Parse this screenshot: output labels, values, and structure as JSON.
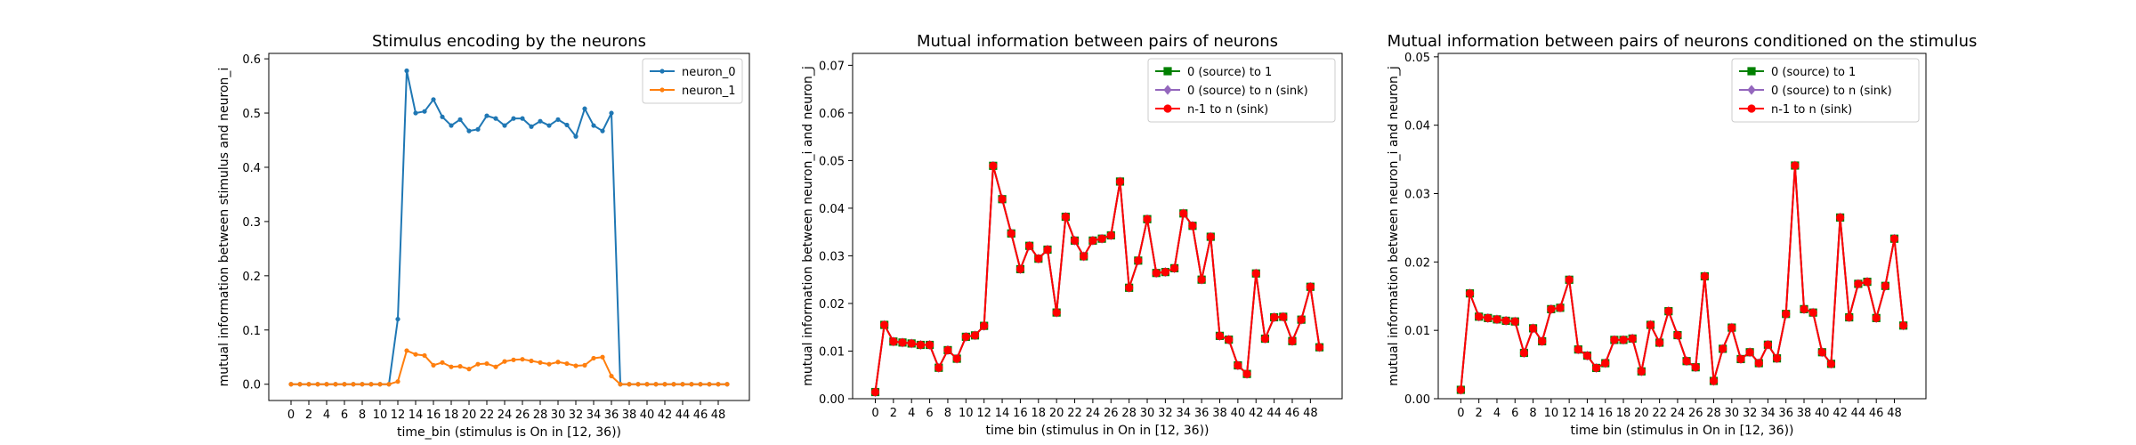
{
  "chart_data": [
    {
      "type": "line",
      "title": "Stimulus encoding by the neurons",
      "xlabel": "time_bin (stimulus is On in [12, 36))",
      "ylabel": "mutual information between stimulus and neuron_i",
      "xlim": [
        -2.5,
        51.5
      ],
      "ylim": [
        -0.03,
        0.61
      ],
      "xticks": [
        0,
        2,
        4,
        6,
        8,
        10,
        12,
        14,
        16,
        18,
        20,
        22,
        24,
        26,
        28,
        30,
        32,
        34,
        36,
        38,
        40,
        42,
        44,
        46,
        48
      ],
      "yticks": [
        0.0,
        0.1,
        0.2,
        0.3,
        0.4,
        0.5,
        0.6
      ],
      "ytick_labels": [
        "0.0",
        "0.1",
        "0.2",
        "0.3",
        "0.4",
        "0.5",
        "0.6"
      ],
      "legend_position": "top-right",
      "x": [
        0,
        1,
        2,
        3,
        4,
        5,
        6,
        7,
        8,
        9,
        10,
        11,
        12,
        13,
        14,
        15,
        16,
        17,
        18,
        19,
        20,
        21,
        22,
        23,
        24,
        25,
        26,
        27,
        28,
        29,
        30,
        31,
        32,
        33,
        34,
        35,
        36,
        37,
        38,
        39,
        40,
        41,
        42,
        43,
        44,
        45,
        46,
        47,
        48,
        49
      ],
      "series": [
        {
          "name": "neuron_0",
          "color": "#1f77b4",
          "marker": "dot",
          "values": [
            0,
            0,
            0,
            0,
            0,
            0,
            0,
            0,
            0,
            0,
            0,
            0,
            0.12,
            0.578,
            0.5,
            0.503,
            0.525,
            0.493,
            0.477,
            0.488,
            0.467,
            0.47,
            0.495,
            0.49,
            0.477,
            0.49,
            0.49,
            0.475,
            0.485,
            0.477,
            0.488,
            0.478,
            0.457,
            0.508,
            0.477,
            0.467,
            0.5,
            0,
            0,
            0,
            0,
            0,
            0,
            0,
            0,
            0,
            0,
            0,
            0,
            0
          ]
        },
        {
          "name": "neuron_1",
          "color": "#ff7f0e",
          "marker": "dot",
          "values": [
            0,
            0,
            0,
            0,
            0,
            0,
            0,
            0,
            0,
            0,
            0,
            0,
            0.005,
            0.062,
            0.055,
            0.053,
            0.035,
            0.04,
            0.032,
            0.033,
            0.028,
            0.037,
            0.038,
            0.032,
            0.042,
            0.045,
            0.046,
            0.043,
            0.04,
            0.037,
            0.041,
            0.038,
            0.034,
            0.035,
            0.048,
            0.05,
            0.015,
            0,
            0,
            0,
            0,
            0,
            0,
            0,
            0,
            0,
            0,
            0,
            0,
            0
          ]
        }
      ]
    },
    {
      "type": "line",
      "title": "Mutual information between pairs of neurons",
      "xlabel": "time bin (stimulus in On in [12, 36))",
      "ylabel": "mutual information between neuron_i and neuron_j",
      "xlim": [
        -2.5,
        51.5
      ],
      "ylim": [
        0,
        0.0725
      ],
      "xticks": [
        0,
        2,
        4,
        6,
        8,
        10,
        12,
        14,
        16,
        18,
        20,
        22,
        24,
        26,
        28,
        30,
        32,
        34,
        36,
        38,
        40,
        42,
        44,
        46,
        48
      ],
      "yticks": [
        0.0,
        0.01,
        0.02,
        0.03,
        0.04,
        0.05,
        0.06,
        0.07
      ],
      "ytick_labels": [
        "0.00",
        "0.01",
        "0.02",
        "0.03",
        "0.04",
        "0.05",
        "0.06",
        "0.07"
      ],
      "legend_position": "top-right",
      "x": [
        0,
        1,
        2,
        3,
        4,
        5,
        6,
        7,
        8,
        9,
        10,
        11,
        12,
        13,
        14,
        15,
        16,
        17,
        18,
        19,
        20,
        21,
        22,
        23,
        24,
        25,
        26,
        27,
        28,
        29,
        30,
        31,
        32,
        33,
        34,
        35,
        36,
        37,
        38,
        39,
        40,
        41,
        42,
        43,
        44,
        45,
        46,
        47,
        48,
        49
      ],
      "series": [
        {
          "name": "0 (source) to 1",
          "color": "#008000",
          "marker": "square",
          "values": [
            0.0014,
            0.0155,
            0.012,
            0.0118,
            0.0116,
            0.0113,
            0.0113,
            0.0065,
            0.0102,
            0.0084,
            0.013,
            0.0133,
            0.0153,
            0.0489,
            0.0419,
            0.0347,
            0.0272,
            0.0321,
            0.0294,
            0.0313,
            0.0181,
            0.0382,
            0.0332,
            0.0299,
            0.0332,
            0.0336,
            0.0343,
            0.0456,
            0.0233,
            0.029,
            0.0377,
            0.0264,
            0.0266,
            0.0274,
            0.0389,
            0.0363,
            0.025,
            0.034,
            0.0132,
            0.0124,
            0.007,
            0.0052,
            0.0263,
            0.0126,
            0.0171,
            0.0172,
            0.0121,
            0.0166,
            0.0235,
            0.0108
          ]
        },
        {
          "name": "0 (source) to n (sink)",
          "color": "#9467bd",
          "marker": "diamond",
          "values": [
            0.0014,
            0.0155,
            0.012,
            0.0118,
            0.0116,
            0.0113,
            0.0113,
            0.0065,
            0.0102,
            0.0084,
            0.013,
            0.0133,
            0.0153,
            0.0489,
            0.0419,
            0.0347,
            0.0272,
            0.0321,
            0.0294,
            0.0313,
            0.0181,
            0.0382,
            0.0332,
            0.0299,
            0.0332,
            0.0336,
            0.0343,
            0.0456,
            0.0233,
            0.029,
            0.0377,
            0.0264,
            0.0266,
            0.0274,
            0.0389,
            0.0363,
            0.025,
            0.034,
            0.0132,
            0.0124,
            0.007,
            0.0052,
            0.0263,
            0.0126,
            0.0171,
            0.0172,
            0.0121,
            0.0166,
            0.0235,
            0.0108
          ]
        },
        {
          "name": "n-1 to n (sink)",
          "color": "#ff0000",
          "marker": "circle",
          "values": [
            0.0014,
            0.0155,
            0.012,
            0.0118,
            0.0116,
            0.0113,
            0.0113,
            0.0065,
            0.0102,
            0.0084,
            0.013,
            0.0133,
            0.0153,
            0.0489,
            0.0419,
            0.0347,
            0.0272,
            0.0321,
            0.0294,
            0.0313,
            0.0181,
            0.0382,
            0.0332,
            0.0299,
            0.0332,
            0.0336,
            0.0343,
            0.0456,
            0.0233,
            0.029,
            0.0377,
            0.0264,
            0.0266,
            0.0274,
            0.0389,
            0.0363,
            0.025,
            0.034,
            0.0132,
            0.0124,
            0.007,
            0.0052,
            0.0263,
            0.0126,
            0.0171,
            0.0172,
            0.0121,
            0.0166,
            0.0235,
            0.0108
          ]
        }
      ]
    },
    {
      "type": "line",
      "title": "Mutual information between pairs of neurons conditioned on the stimulus",
      "xlabel": "time bin (stimulus in On in [12, 36))",
      "ylabel": "mutual information between neuron_i and neuron_j",
      "xlim": [
        -2.5,
        51.5
      ],
      "ylim": [
        0,
        0.0505
      ],
      "xticks": [
        0,
        2,
        4,
        6,
        8,
        10,
        12,
        14,
        16,
        18,
        20,
        22,
        24,
        26,
        28,
        30,
        32,
        34,
        36,
        38,
        40,
        42,
        44,
        46,
        48
      ],
      "yticks": [
        0.0,
        0.01,
        0.02,
        0.03,
        0.04,
        0.05
      ],
      "ytick_labels": [
        "0.00",
        "0.01",
        "0.02",
        "0.03",
        "0.04",
        "0.05"
      ],
      "legend_position": "top-right",
      "x": [
        0,
        1,
        2,
        3,
        4,
        5,
        6,
        7,
        8,
        9,
        10,
        11,
        12,
        13,
        14,
        15,
        16,
        17,
        18,
        19,
        20,
        21,
        22,
        23,
        24,
        25,
        26,
        27,
        28,
        29,
        30,
        31,
        32,
        33,
        34,
        35,
        36,
        37,
        38,
        39,
        40,
        41,
        42,
        43,
        44,
        45,
        46,
        47,
        48,
        49
      ],
      "series": [
        {
          "name": "0 (source) to 1",
          "color": "#008000",
          "marker": "square",
          "values": [
            0.0013,
            0.0154,
            0.012,
            0.0118,
            0.0116,
            0.0114,
            0.0113,
            0.0067,
            0.0103,
            0.0084,
            0.0131,
            0.0133,
            0.0174,
            0.0072,
            0.0063,
            0.0045,
            0.0052,
            0.0086,
            0.0086,
            0.0088,
            0.004,
            0.0108,
            0.0082,
            0.0128,
            0.0093,
            0.0055,
            0.0046,
            0.0179,
            0.0026,
            0.0073,
            0.0104,
            0.0058,
            0.0068,
            0.0052,
            0.0079,
            0.0059,
            0.0124,
            0.0341,
            0.0131,
            0.0126,
            0.0068,
            0.0051,
            0.0265,
            0.0119,
            0.0168,
            0.0171,
            0.0118,
            0.0165,
            0.0234,
            0.0107
          ]
        },
        {
          "name": "0 (source) to n (sink)",
          "color": "#9467bd",
          "marker": "diamond",
          "values": [
            0.0013,
            0.0154,
            0.012,
            0.0118,
            0.0116,
            0.0114,
            0.0113,
            0.0067,
            0.0103,
            0.0084,
            0.0131,
            0.0133,
            0.0174,
            0.0072,
            0.0063,
            0.0045,
            0.0052,
            0.0086,
            0.0086,
            0.0088,
            0.004,
            0.0108,
            0.0082,
            0.0128,
            0.0093,
            0.0055,
            0.0046,
            0.0179,
            0.0026,
            0.0073,
            0.0104,
            0.0058,
            0.0068,
            0.0052,
            0.0079,
            0.0059,
            0.0124,
            0.0341,
            0.0131,
            0.0126,
            0.0068,
            0.0051,
            0.0265,
            0.0119,
            0.0168,
            0.0171,
            0.0118,
            0.0165,
            0.0234,
            0.0107
          ]
        },
        {
          "name": "n-1 to n (sink)",
          "color": "#ff0000",
          "marker": "circle",
          "values": [
            0.0013,
            0.0154,
            0.012,
            0.0118,
            0.0116,
            0.0114,
            0.0113,
            0.0067,
            0.0103,
            0.0084,
            0.0131,
            0.0133,
            0.0174,
            0.0072,
            0.0063,
            0.0045,
            0.0052,
            0.0086,
            0.0086,
            0.0088,
            0.004,
            0.0108,
            0.0082,
            0.0128,
            0.0093,
            0.0055,
            0.0046,
            0.0179,
            0.0026,
            0.0073,
            0.0104,
            0.0058,
            0.0068,
            0.0052,
            0.0079,
            0.0059,
            0.0124,
            0.0341,
            0.0131,
            0.0126,
            0.0068,
            0.0051,
            0.0265,
            0.0119,
            0.0168,
            0.0171,
            0.0118,
            0.0165,
            0.0234,
            0.0107
          ]
        }
      ]
    }
  ]
}
